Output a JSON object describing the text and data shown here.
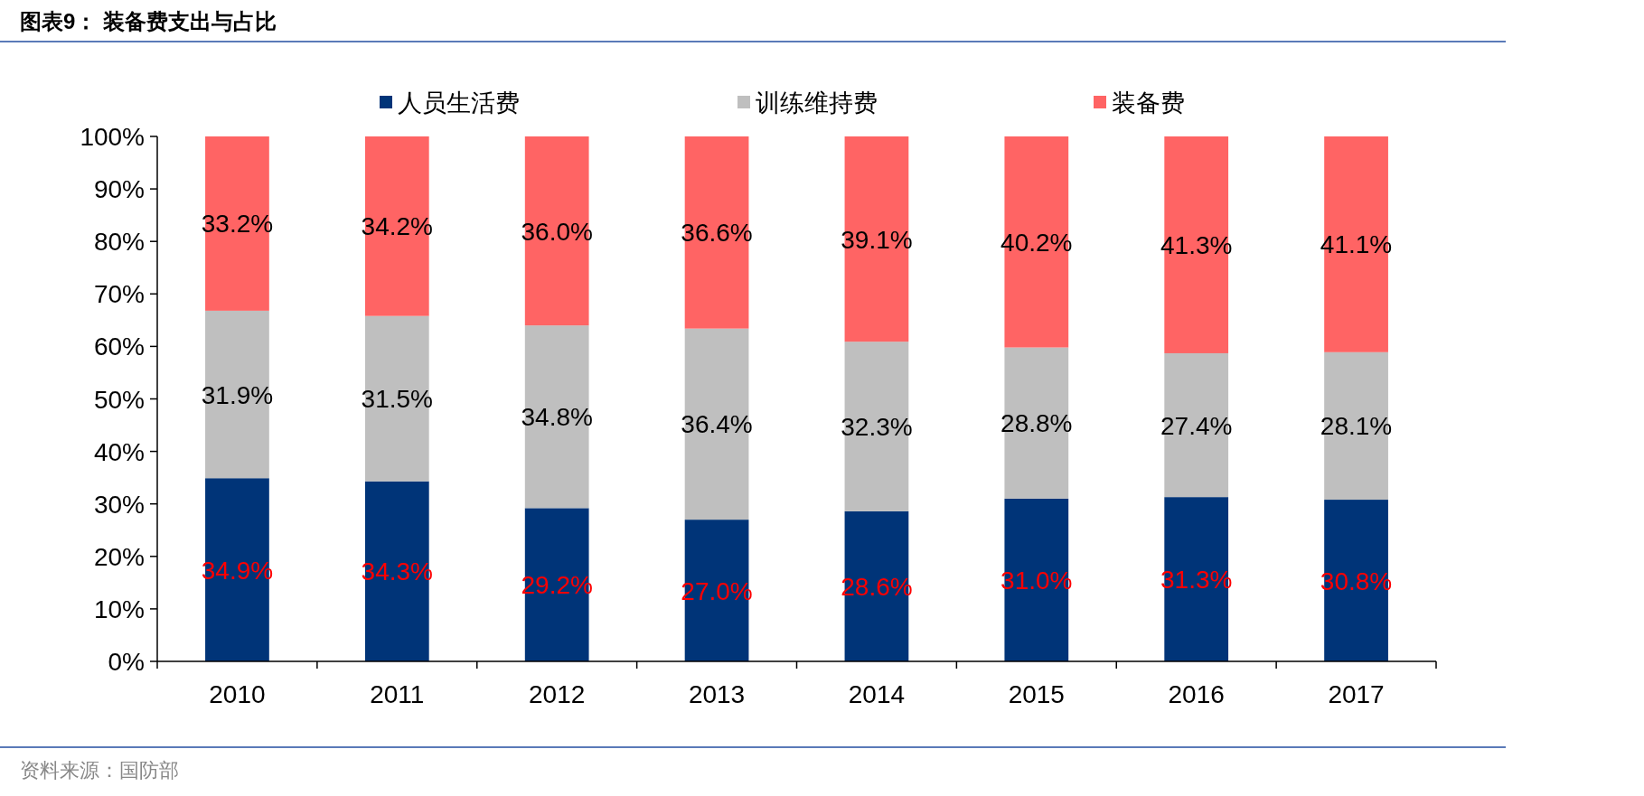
{
  "chart_data": {
    "type": "bar",
    "stacked": true,
    "title": "图表9：  装备费支出与占比",
    "annotations": [
      "资料来源：国防部"
    ],
    "categories": [
      "2010",
      "2011",
      "2012",
      "2013",
      "2014",
      "2015",
      "2016",
      "2017"
    ],
    "series": [
      {
        "name": "人员生活费",
        "color": "#003478",
        "values": [
          34.9,
          34.3,
          29.2,
          27.0,
          28.6,
          31.0,
          31.3,
          30.8
        ]
      },
      {
        "name": "训练维持费",
        "color": "#bfbfbf",
        "values": [
          31.9,
          31.5,
          34.8,
          36.4,
          32.3,
          28.8,
          27.4,
          28.1
        ]
      },
      {
        "name": "装备费",
        "color": "#ff6464",
        "values": [
          33.2,
          34.2,
          36.0,
          36.6,
          39.1,
          40.2,
          41.3,
          41.1
        ]
      }
    ],
    "ylim": [
      0,
      100
    ],
    "yticks": [
      {
        "value": 0,
        "label": "0%"
      },
      {
        "value": 10,
        "label": "10%"
      },
      {
        "value": 20,
        "label": "20%"
      },
      {
        "value": 30,
        "label": "30%"
      },
      {
        "value": 40,
        "label": "40%"
      },
      {
        "value": 50,
        "label": "50%"
      },
      {
        "value": 60,
        "label": "60%"
      },
      {
        "value": 70,
        "label": "70%"
      },
      {
        "value": 80,
        "label": "80%"
      },
      {
        "value": 90,
        "label": "90%"
      },
      {
        "value": 100,
        "label": "100%"
      }
    ],
    "value_labels": [
      [
        "34.9%",
        "34.3%",
        "29.2%",
        "27.0%",
        "28.6%",
        "31.0%",
        "31.3%",
        "30.8%"
      ],
      [
        "31.9%",
        "31.5%",
        "34.8%",
        "36.4%",
        "32.3%",
        "28.8%",
        "27.4%",
        "28.1%"
      ],
      [
        "33.2%",
        "34.2%",
        "36.0%",
        "36.6%",
        "39.1%",
        "40.2%",
        "41.3%",
        "41.1%"
      ]
    ],
    "legend": "top",
    "grid": false
  }
}
